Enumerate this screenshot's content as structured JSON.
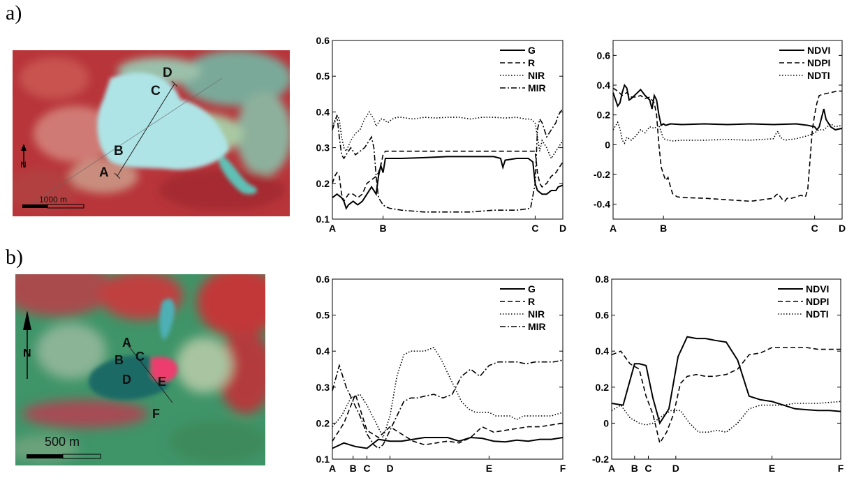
{
  "panels": [
    {
      "label": "a)",
      "map": {
        "scale_text": "1000 m",
        "north": "N",
        "point_labels": [
          "A",
          "B",
          "C",
          "D"
        ]
      }
    },
    {
      "label": "b)",
      "map": {
        "scale_text": "500 m",
        "north": "N",
        "point_labels": [
          "A",
          "B",
          "C",
          "D",
          "E",
          "F"
        ]
      }
    }
  ],
  "chart_data": [
    {
      "id": "a-bands",
      "type": "line",
      "ylim": [
        0.1,
        0.6
      ],
      "yticks": [
        0.1,
        0.2,
        0.3,
        0.4,
        0.5,
        0.6
      ],
      "xlim": [
        0,
        100
      ],
      "xticks": [
        {
          "x": 0,
          "label": "A"
        },
        {
          "x": 22,
          "label": "B"
        },
        {
          "x": 88,
          "label": "C"
        },
        {
          "x": 100,
          "label": "D"
        }
      ],
      "legend": "top-right",
      "series": [
        {
          "name": "G",
          "style": "solid",
          "x": [
            0,
            2,
            4,
            5,
            6,
            7,
            9,
            11,
            13,
            15,
            17,
            19,
            20,
            21,
            22,
            23,
            25,
            30,
            40,
            50,
            60,
            70,
            73,
            74,
            75,
            80,
            85,
            87,
            88,
            89,
            91,
            93,
            95,
            97,
            98,
            100
          ],
          "y": [
            0.16,
            0.17,
            0.16,
            0.15,
            0.13,
            0.14,
            0.15,
            0.14,
            0.15,
            0.17,
            0.19,
            0.17,
            0.22,
            0.25,
            0.23,
            0.27,
            0.27,
            0.27,
            0.272,
            0.275,
            0.275,
            0.275,
            0.27,
            0.245,
            0.265,
            0.27,
            0.27,
            0.26,
            0.2,
            0.18,
            0.17,
            0.17,
            0.18,
            0.18,
            0.19,
            0.195
          ]
        },
        {
          "name": "R",
          "style": "dashed",
          "x": [
            0,
            1,
            2,
            3,
            4,
            5,
            6,
            7,
            9,
            11,
            13,
            15,
            17,
            19,
            20,
            21,
            22,
            23,
            25,
            30,
            40,
            50,
            60,
            70,
            80,
            88,
            89,
            90,
            91,
            93,
            95,
            97,
            98,
            100
          ],
          "y": [
            0.2,
            0.22,
            0.23,
            0.22,
            0.17,
            0.15,
            0.16,
            0.17,
            0.17,
            0.16,
            0.17,
            0.2,
            0.21,
            0.22,
            0.23,
            0.25,
            0.28,
            0.29,
            0.29,
            0.29,
            0.29,
            0.29,
            0.29,
            0.29,
            0.29,
            0.29,
            0.23,
            0.2,
            0.19,
            0.2,
            0.22,
            0.23,
            0.24,
            0.26
          ]
        },
        {
          "name": "NIR",
          "style": "dotted",
          "x": [
            0,
            2,
            3,
            4,
            5,
            6,
            8,
            10,
            12,
            14,
            16,
            18,
            19,
            20,
            21,
            22,
            24,
            26,
            28,
            30,
            35,
            40,
            45,
            50,
            55,
            60,
            65,
            70,
            75,
            80,
            84,
            86,
            88,
            89,
            90,
            91,
            93,
            95,
            97,
            98,
            100
          ],
          "y": [
            0.36,
            0.39,
            0.38,
            0.33,
            0.3,
            0.29,
            0.32,
            0.34,
            0.35,
            0.38,
            0.4,
            0.38,
            0.36,
            0.37,
            0.38,
            0.38,
            0.37,
            0.38,
            0.385,
            0.385,
            0.38,
            0.385,
            0.383,
            0.385,
            0.385,
            0.38,
            0.385,
            0.385,
            0.383,
            0.385,
            0.38,
            0.38,
            0.37,
            0.33,
            0.29,
            0.32,
            0.3,
            0.27,
            0.29,
            0.3,
            0.32
          ]
        },
        {
          "name": "MIR",
          "style": "dashdot",
          "x": [
            0,
            2,
            3,
            4,
            5,
            6,
            8,
            10,
            12,
            14,
            16,
            17,
            18,
            19,
            20,
            21,
            22,
            23,
            25,
            30,
            40,
            50,
            60,
            70,
            80,
            86,
            88,
            89,
            90,
            91,
            93,
            95,
            97,
            98,
            100
          ],
          "y": [
            0.35,
            0.39,
            0.33,
            0.28,
            0.27,
            0.28,
            0.3,
            0.28,
            0.29,
            0.3,
            0.32,
            0.33,
            0.3,
            0.22,
            0.16,
            0.15,
            0.14,
            0.135,
            0.13,
            0.125,
            0.12,
            0.12,
            0.12,
            0.125,
            0.125,
            0.13,
            0.2,
            0.35,
            0.38,
            0.37,
            0.33,
            0.35,
            0.37,
            0.39,
            0.41
          ]
        }
      ]
    },
    {
      "id": "a-indices",
      "type": "line",
      "ylim": [
        -0.5,
        0.7
      ],
      "yticks": [
        -0.4,
        -0.2,
        0,
        0.2,
        0.4,
        0.6
      ],
      "ytick_labels": [
        "-0.4",
        "-0.2",
        "0",
        "0.2",
        "0.4",
        "0.6"
      ],
      "xlim": [
        0,
        100
      ],
      "xticks": [
        {
          "x": 0,
          "label": "A"
        },
        {
          "x": 22,
          "label": "B"
        },
        {
          "x": 88,
          "label": "C"
        },
        {
          "x": 100,
          "label": "D"
        }
      ],
      "legend": "top-right",
      "series": [
        {
          "name": "NDVI",
          "style": "solid",
          "x": [
            0,
            2,
            3,
            4,
            5,
            6,
            7,
            8,
            10,
            12,
            14,
            16,
            17,
            18,
            19,
            20,
            21,
            22,
            23,
            25,
            30,
            40,
            50,
            60,
            70,
            80,
            85,
            88,
            89,
            90,
            91,
            92,
            93,
            95,
            97,
            100
          ],
          "y": [
            0.35,
            0.26,
            0.28,
            0.35,
            0.4,
            0.38,
            0.3,
            0.31,
            0.34,
            0.37,
            0.33,
            0.3,
            0.24,
            0.33,
            0.3,
            0.2,
            0.13,
            0.14,
            0.13,
            0.14,
            0.135,
            0.14,
            0.135,
            0.14,
            0.135,
            0.14,
            0.13,
            0.12,
            0.1,
            0.12,
            0.18,
            0.24,
            0.17,
            0.12,
            0.1,
            0.11
          ]
        },
        {
          "name": "NDPI",
          "style": "dashed",
          "x": [
            0,
            2,
            4,
            6,
            8,
            10,
            12,
            14,
            16,
            17,
            18,
            19,
            20,
            21,
            22,
            23,
            24,
            25,
            26,
            28,
            30,
            40,
            50,
            60,
            65,
            70,
            71,
            72,
            74,
            75,
            76,
            78,
            80,
            82,
            84,
            85,
            86,
            87,
            88,
            89,
            90,
            92,
            95,
            98,
            100
          ],
          "y": [
            0.38,
            0.36,
            0.33,
            0.35,
            0.32,
            0.32,
            0.33,
            0.31,
            0.32,
            0.3,
            0.28,
            0.2,
            0.0,
            -0.15,
            -0.2,
            -0.24,
            -0.22,
            -0.28,
            -0.33,
            -0.35,
            -0.355,
            -0.36,
            -0.37,
            -0.38,
            -0.37,
            -0.36,
            -0.34,
            -0.33,
            -0.37,
            -0.38,
            -0.36,
            -0.36,
            -0.35,
            -0.34,
            -0.35,
            -0.3,
            -0.1,
            0.1,
            0.2,
            0.28,
            0.33,
            0.34,
            0.35,
            0.36,
            0.36
          ]
        },
        {
          "name": "NDTI",
          "style": "dotted",
          "x": [
            0,
            2,
            3,
            4,
            5,
            6,
            8,
            10,
            12,
            14,
            16,
            18,
            20,
            22,
            24,
            26,
            30,
            40,
            50,
            60,
            70,
            71,
            72,
            73,
            75,
            80,
            85,
            88,
            90,
            92,
            95,
            97,
            100
          ],
          "y": [
            0.1,
            0.15,
            0.11,
            0.03,
            0.01,
            0.05,
            0.03,
            0.06,
            0.1,
            0.08,
            0.12,
            0.11,
            0.13,
            0.04,
            0.03,
            0.025,
            0.03,
            0.03,
            0.035,
            0.03,
            0.04,
            0.07,
            0.09,
            0.05,
            0.03,
            0.04,
            0.06,
            0.08,
            0.1,
            0.1,
            0.14,
            0.12,
            0.13
          ]
        }
      ]
    },
    {
      "id": "b-bands",
      "type": "line",
      "ylim": [
        0.1,
        0.6
      ],
      "yticks": [
        0.1,
        0.2,
        0.3,
        0.4,
        0.5,
        0.6
      ],
      "xlim": [
        0,
        100
      ],
      "xticks": [
        {
          "x": 0,
          "label": "A"
        },
        {
          "x": 9,
          "label": "B"
        },
        {
          "x": 15,
          "label": "C"
        },
        {
          "x": 25,
          "label": "D"
        },
        {
          "x": 68,
          "label": "E"
        },
        {
          "x": 100,
          "label": "F"
        }
      ],
      "legend": "top-right",
      "series": [
        {
          "name": "G",
          "style": "solid",
          "x": [
            0,
            5,
            10,
            15,
            20,
            25,
            30,
            35,
            40,
            45,
            50,
            55,
            60,
            65,
            70,
            75,
            80,
            85,
            90,
            95,
            100
          ],
          "y": [
            0.13,
            0.145,
            0.135,
            0.13,
            0.155,
            0.15,
            0.15,
            0.155,
            0.16,
            0.16,
            0.16,
            0.15,
            0.16,
            0.158,
            0.15,
            0.148,
            0.153,
            0.15,
            0.155,
            0.155,
            0.16
          ]
        },
        {
          "name": "R",
          "style": "dashed",
          "x": [
            0,
            5,
            10,
            15,
            20,
            25,
            30,
            35,
            40,
            45,
            50,
            55,
            60,
            65,
            70,
            75,
            80,
            85,
            90,
            95,
            100
          ],
          "y": [
            0.15,
            0.2,
            0.28,
            0.18,
            0.16,
            0.19,
            0.17,
            0.15,
            0.14,
            0.145,
            0.15,
            0.145,
            0.16,
            0.19,
            0.175,
            0.18,
            0.185,
            0.19,
            0.19,
            0.195,
            0.2
          ]
        },
        {
          "name": "NIR",
          "style": "dotted",
          "x": [
            0,
            4,
            8,
            12,
            15,
            19,
            22,
            25,
            28,
            31,
            34,
            37,
            40,
            44,
            47,
            50,
            53,
            56,
            59,
            62,
            65,
            68,
            71,
            74,
            77,
            80,
            83,
            86,
            90,
            95,
            100
          ],
          "y": [
            0.19,
            0.22,
            0.27,
            0.28,
            0.25,
            0.2,
            0.16,
            0.22,
            0.33,
            0.39,
            0.4,
            0.4,
            0.4,
            0.41,
            0.38,
            0.34,
            0.3,
            0.26,
            0.24,
            0.23,
            0.23,
            0.23,
            0.22,
            0.22,
            0.22,
            0.21,
            0.22,
            0.22,
            0.22,
            0.22,
            0.23
          ]
        },
        {
          "name": "MIR",
          "style": "dashdot",
          "x": [
            0,
            3,
            6,
            9,
            12,
            15,
            18,
            20,
            22,
            25,
            28,
            31,
            34,
            37,
            40,
            44,
            48,
            52,
            56,
            60,
            64,
            68,
            72,
            76,
            80,
            84,
            88,
            92,
            96,
            100
          ],
          "y": [
            0.29,
            0.36,
            0.3,
            0.26,
            0.22,
            0.17,
            0.14,
            0.13,
            0.14,
            0.18,
            0.22,
            0.26,
            0.27,
            0.27,
            0.275,
            0.28,
            0.27,
            0.28,
            0.33,
            0.35,
            0.33,
            0.36,
            0.37,
            0.37,
            0.37,
            0.365,
            0.37,
            0.37,
            0.37,
            0.375
          ]
        }
      ]
    },
    {
      "id": "b-indices",
      "type": "line",
      "ylim": [
        -0.2,
        0.8
      ],
      "yticks": [
        -0.2,
        0,
        0.2,
        0.4,
        0.6,
        0.8
      ],
      "ytick_labels": [
        "-0.2",
        "0",
        "0.2",
        "0.4",
        "0.6",
        "0.8"
      ],
      "xlim": [
        0,
        100
      ],
      "xticks": [
        {
          "x": 0,
          "label": "A"
        },
        {
          "x": 10,
          "label": "B"
        },
        {
          "x": 16,
          "label": "C"
        },
        {
          "x": 28,
          "label": "D"
        },
        {
          "x": 70,
          "label": "E"
        },
        {
          "x": 100,
          "label": "F"
        }
      ],
      "legend": "top-right",
      "series": [
        {
          "name": "NDVI",
          "style": "solid",
          "x": [
            0,
            5,
            10,
            12,
            15,
            18,
            21,
            25,
            29,
            33,
            37,
            41,
            45,
            50,
            55,
            60,
            65,
            70,
            75,
            80,
            85,
            90,
            95,
            100
          ],
          "y": [
            0.11,
            0.1,
            0.33,
            0.33,
            0.32,
            0.14,
            0.0,
            0.08,
            0.37,
            0.48,
            0.47,
            0.47,
            0.46,
            0.45,
            0.35,
            0.15,
            0.13,
            0.12,
            0.1,
            0.08,
            0.075,
            0.07,
            0.07,
            0.065
          ]
        },
        {
          "name": "NDPI",
          "style": "dashed",
          "x": [
            0,
            4,
            8,
            12,
            15,
            18,
            21,
            24,
            27,
            30,
            33,
            37,
            41,
            45,
            50,
            55,
            60,
            65,
            70,
            75,
            80,
            85,
            90,
            95,
            100
          ],
          "y": [
            0.38,
            0.4,
            0.33,
            0.3,
            0.15,
            0.05,
            -0.11,
            -0.05,
            0.05,
            0.22,
            0.26,
            0.27,
            0.26,
            0.26,
            0.27,
            0.3,
            0.38,
            0.39,
            0.42,
            0.42,
            0.42,
            0.42,
            0.41,
            0.41,
            0.41
          ]
        },
        {
          "name": "NDTI",
          "style": "dotted",
          "x": [
            0,
            4,
            8,
            12,
            15,
            18,
            22,
            26,
            30,
            34,
            38,
            42,
            46,
            50,
            55,
            60,
            65,
            70,
            75,
            80,
            85,
            90,
            95,
            100
          ],
          "y": [
            0.07,
            0.1,
            0.03,
            0.0,
            -0.01,
            0.0,
            0.04,
            0.07,
            0.07,
            0.0,
            -0.05,
            -0.05,
            -0.04,
            -0.05,
            0.0,
            0.08,
            0.1,
            0.1,
            0.1,
            0.11,
            0.11,
            0.11,
            0.115,
            0.12
          ]
        }
      ]
    }
  ]
}
